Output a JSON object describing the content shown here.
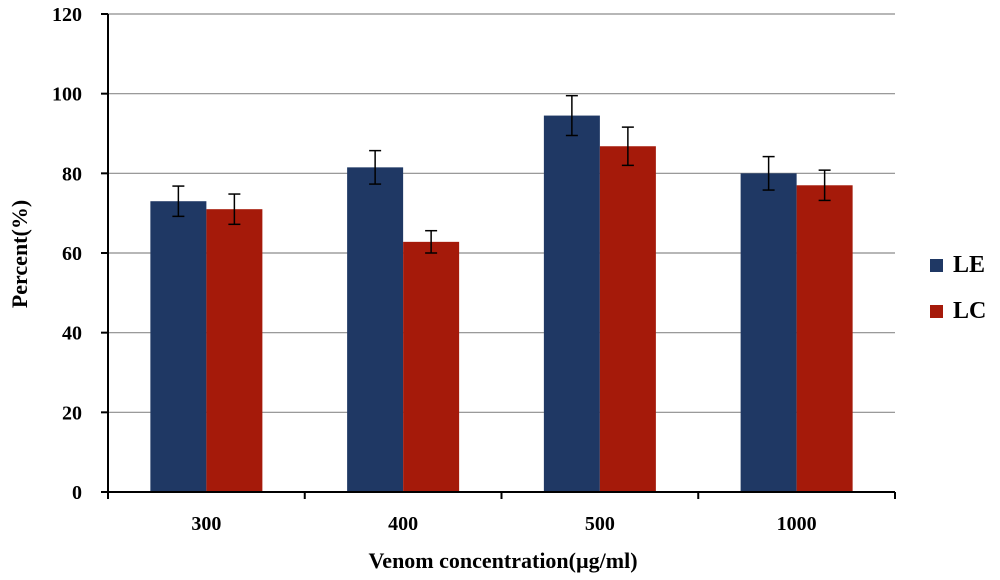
{
  "chart_data": {
    "type": "bar",
    "xlabel": "Venom concentration(µg/ml)",
    "ylabel": "Percent(%)",
    "categories": [
      "300",
      "400",
      "500",
      "1000"
    ],
    "ylim": [
      0,
      120
    ],
    "yticks": [
      0,
      20,
      40,
      60,
      80,
      100,
      120
    ],
    "grid": true,
    "legend_position": "right",
    "series": [
      {
        "name": "LE",
        "color": "#1f3864",
        "values": [
          73,
          81.5,
          94.5,
          80
        ],
        "errors": [
          3.8,
          4.2,
          5,
          4.2
        ]
      },
      {
        "name": "LC",
        "color": "#a51a0a",
        "values": [
          71,
          62.8,
          86.8,
          77
        ],
        "errors": [
          3.8,
          2.8,
          4.8,
          3.8
        ]
      }
    ]
  }
}
